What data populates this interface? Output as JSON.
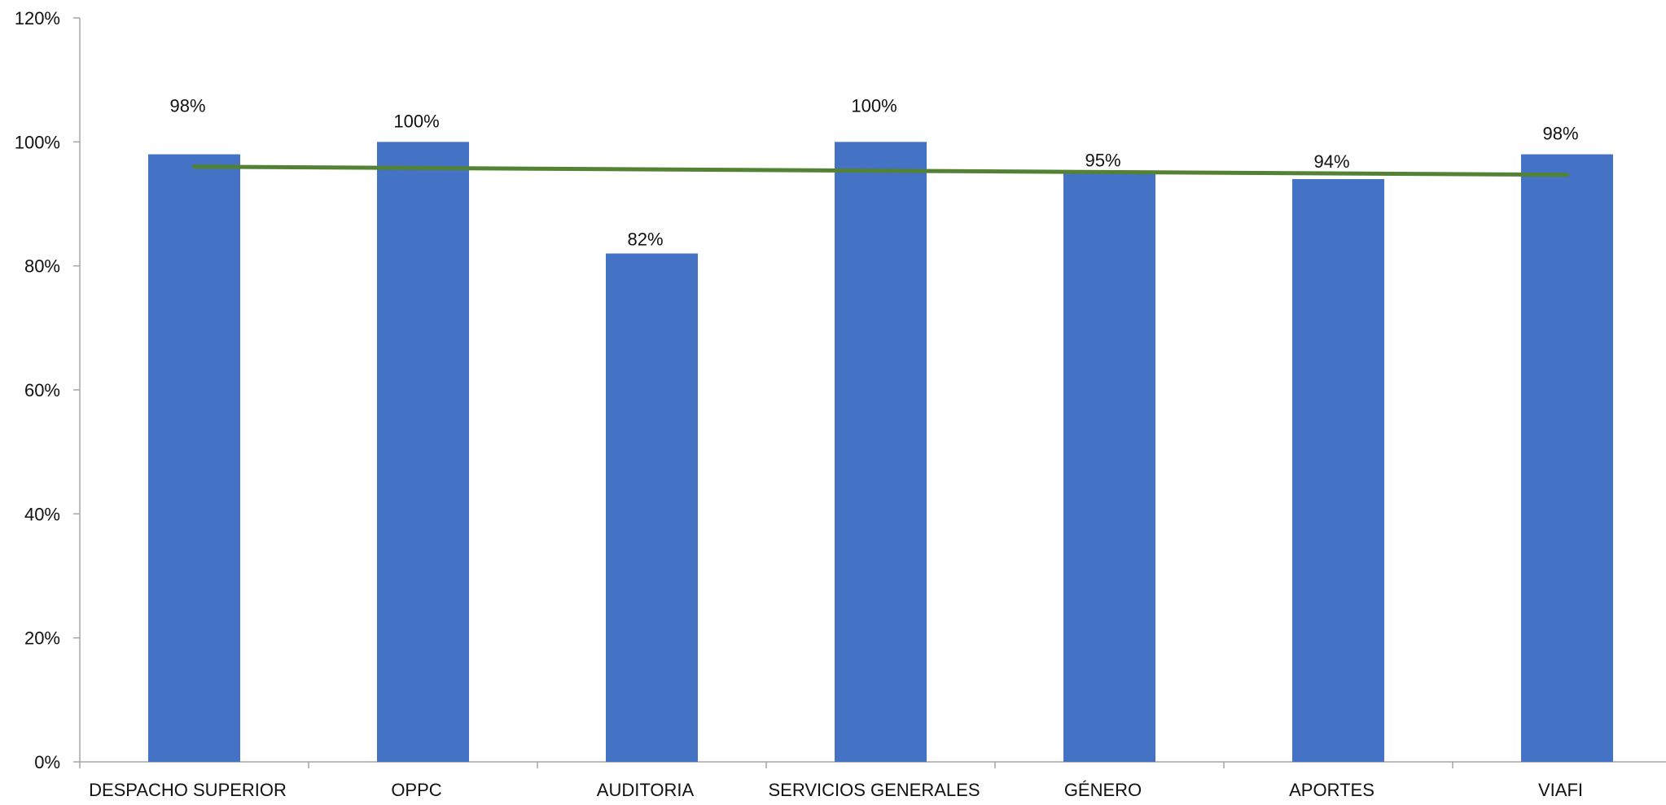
{
  "chart_data": {
    "type": "bar",
    "title": "",
    "xlabel": "",
    "ylabel": "",
    "categories": [
      "DESPACHO SUPERIOR",
      "OPPC",
      "AUDITORIA",
      "SERVICIOS GENERALES",
      "GÉNERO",
      "APORTES",
      "VIAFI"
    ],
    "series": [
      {
        "values": [
          98,
          100,
          82,
          100,
          95,
          94,
          98
        ],
        "data_labels": [
          "98%",
          "100%",
          "82%",
          "100%",
          "95%",
          "94%",
          "98%"
        ],
        "color": "#4472C4"
      }
    ],
    "trendline": {
      "type": "linear",
      "start": 96.0,
      "end": 94.7,
      "color": "#548235"
    },
    "ylim": [
      0,
      120
    ],
    "yticks": [
      0,
      20,
      40,
      60,
      80,
      100,
      120
    ],
    "ytick_labels": [
      "0%",
      "20%",
      "40%",
      "60%",
      "80%",
      "100%",
      "120%"
    ],
    "grid": false,
    "legend": "none"
  }
}
